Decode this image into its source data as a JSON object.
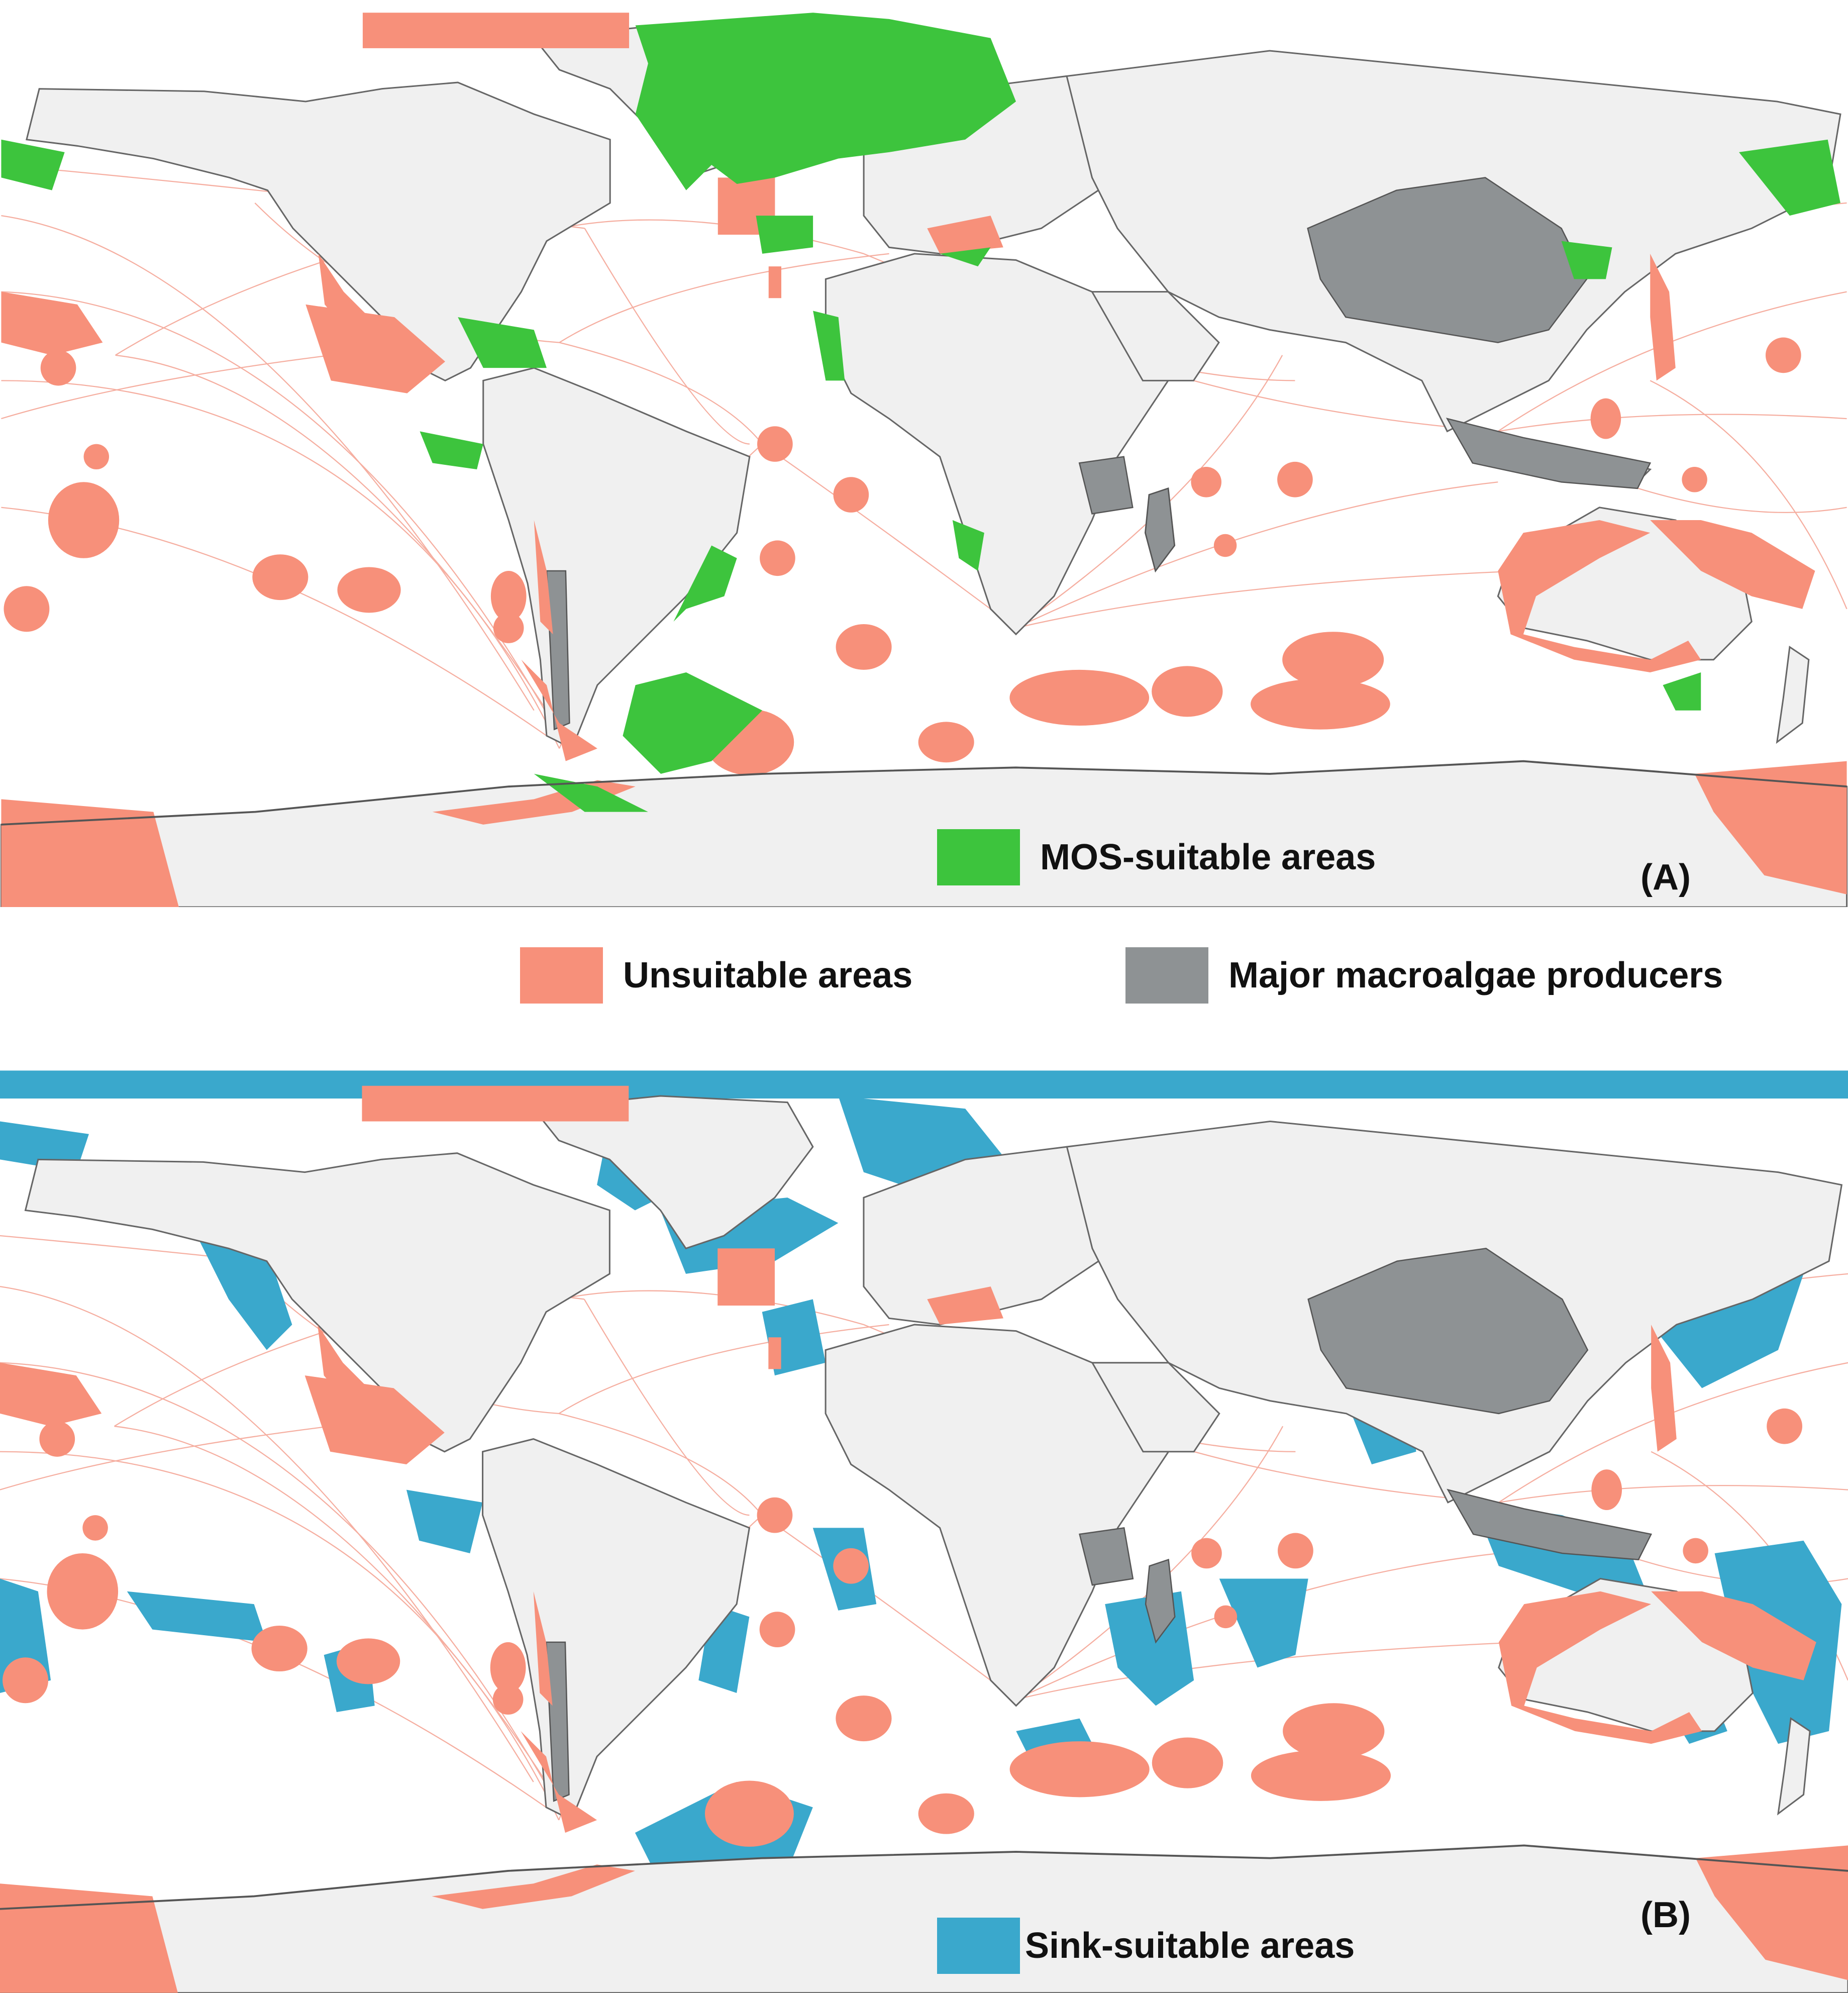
{
  "colors": {
    "ocean": "#ffffff",
    "land": "#f0f0f0",
    "border": "#666666",
    "unsuitable": "#f7907a",
    "producer": "#8e9294",
    "mos": "#3dc43d",
    "sink": "#3aa8cc",
    "shipping_lines": "#f4a090"
  },
  "panel_a": {
    "label": "(A)",
    "legend_label": "MOS-suitable areas",
    "legend_color": "#3dc43d"
  },
  "panel_b": {
    "label": "(B)",
    "legend_label": "Sink-suitable areas",
    "legend_color": "#3aa8cc"
  },
  "shared_legend": {
    "unsuitable_label": "Unsuitable areas",
    "unsuitable_color": "#f7907a",
    "producers_label": "Major macroalgae producers",
    "producers_color": "#8e9294"
  }
}
